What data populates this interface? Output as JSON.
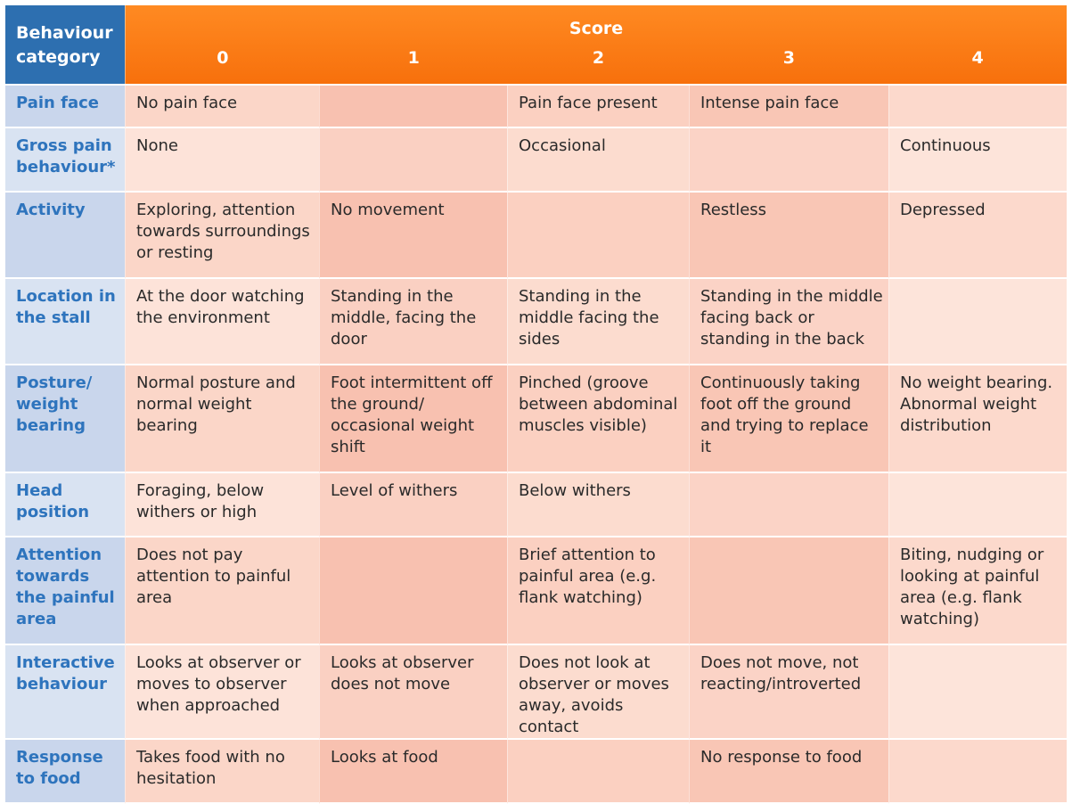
{
  "header": {
    "category_label": "Behaviour category",
    "score_label": "Score",
    "scores": [
      "0",
      "1",
      "2",
      "3",
      "4"
    ]
  },
  "rows": [
    {
      "category": "Pain face",
      "cells": [
        "No pain face",
        "",
        "Pain face present",
        "Intense pain face",
        ""
      ]
    },
    {
      "category": "Gross pain behaviour*",
      "cells": [
        "None",
        "",
        "Occasional",
        "",
        "Continuous"
      ]
    },
    {
      "category": "Activity",
      "cells": [
        "Exploring, attention towards surroundings or resting",
        "No movement",
        "",
        "Restless",
        "Depressed"
      ]
    },
    {
      "category": "Location in the stall",
      "cells": [
        "At the door watching the environment",
        "Standing in the middle, facing the door",
        "Standing in the middle facing the sides",
        "Standing in the middle facing back or standing in the back",
        ""
      ]
    },
    {
      "category": "Posture/ weight bearing",
      "cells": [
        "Normal posture and normal weight bearing",
        "Foot intermittent off the ground/ occasional weight shift",
        "Pinched (groove between abdominal muscles visible)",
        "Continuously taking foot off the ground and trying to replace it",
        "No weight bearing. Abnormal weight distribution"
      ]
    },
    {
      "category": "Head position",
      "cells": [
        "Foraging, below withers or high",
        "Level of withers",
        "Below withers",
        "",
        ""
      ]
    },
    {
      "category": "Attention towards the painful area",
      "cells": [
        "Does not pay attention to painful area",
        "",
        "Brief attention to painful area (e.g. flank watching)",
        "",
        "Biting, nudging or looking at painful area (e.g. flank watching)"
      ]
    },
    {
      "category": "Interactive behaviour",
      "cells": [
        "Looks at observer or moves to observer when approached",
        "Looks at observer does not move",
        "Does not look at observer or moves away, avoids contact",
        "Does not move, not reacting/introverted",
        ""
      ]
    },
    {
      "category": "Response to food",
      "cells": [
        "Takes food with no hesitation",
        "Looks at food",
        "",
        "No response to food",
        ""
      ]
    }
  ]
}
